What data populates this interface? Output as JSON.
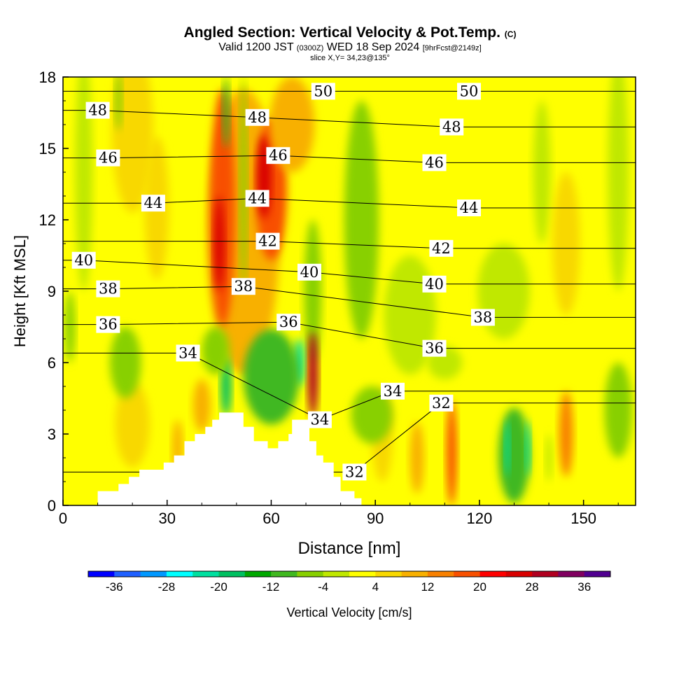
{
  "title": {
    "main": "Angled Section: Vertical Velocity & Pot.Temp.",
    "main_unit": "(C)",
    "valid_prefix": "Valid 1200 JST",
    "valid_utc": "(0300Z)",
    "valid_date": "WED 18 Sep 2024",
    "valid_fcst": "[9hrFcst@2149z]",
    "slice": "slice X,Y= 34,23@135°"
  },
  "chart_data": {
    "type": "heatmap",
    "xlabel": "Distance [nm]",
    "ylabel": "Height [Kft MSL]",
    "xlim": [
      0,
      165
    ],
    "ylim": [
      0,
      18
    ],
    "x_ticks": [
      0,
      30,
      60,
      90,
      120,
      150
    ],
    "y_ticks": [
      0,
      3,
      6,
      9,
      12,
      15,
      18
    ],
    "colorbar": {
      "label": "Vertical Velocity [cm/s]",
      "ticks": [
        "-36",
        "-28",
        "-20",
        "-12",
        "-4",
        "4",
        "12",
        "20",
        "28",
        "36"
      ],
      "levels": [
        -40,
        -36,
        -32,
        -28,
        -24,
        -20,
        -16,
        -12,
        -8,
        -4,
        0,
        4,
        8,
        12,
        16,
        20,
        24,
        28,
        32,
        36,
        40
      ],
      "colors": [
        "#0000ff",
        "#2060ff",
        "#0098ff",
        "#00ffff",
        "#00e0a0",
        "#00c060",
        "#00a800",
        "#40b820",
        "#88d000",
        "#c0e800",
        "#ffff00",
        "#f8d800",
        "#f8b000",
        "#f88000",
        "#f85000",
        "#ff0000",
        "#d80000",
        "#b00020",
        "#800060",
        "#500090"
      ]
    },
    "contour_field": "Potential temperature (C)",
    "contour_labels": [
      {
        "text": "50",
        "x": 75,
        "y": 17.4
      },
      {
        "text": "50",
        "x": 117,
        "y": 17.4
      },
      {
        "text": "48",
        "x": 10,
        "y": 16.6
      },
      {
        "text": "48",
        "x": 56,
        "y": 16.3
      },
      {
        "text": "48",
        "x": 112,
        "y": 15.9
      },
      {
        "text": "46",
        "x": 13,
        "y": 14.6
      },
      {
        "text": "46",
        "x": 62,
        "y": 14.7
      },
      {
        "text": "46",
        "x": 107,
        "y": 14.4
      },
      {
        "text": "44",
        "x": 26,
        "y": 12.7
      },
      {
        "text": "44",
        "x": 56,
        "y": 12.9
      },
      {
        "text": "44",
        "x": 117,
        "y": 12.5
      },
      {
        "text": "42",
        "x": 59,
        "y": 11.1
      },
      {
        "text": "42",
        "x": 109,
        "y": 10.8
      },
      {
        "text": "40",
        "x": 6,
        "y": 10.3
      },
      {
        "text": "40",
        "x": 71,
        "y": 9.8
      },
      {
        "text": "40",
        "x": 107,
        "y": 9.3
      },
      {
        "text": "38",
        "x": 13,
        "y": 9.1
      },
      {
        "text": "38",
        "x": 52,
        "y": 9.2
      },
      {
        "text": "38",
        "x": 121,
        "y": 7.9
      },
      {
        "text": "36",
        "x": 13,
        "y": 7.6
      },
      {
        "text": "36",
        "x": 65,
        "y": 7.7
      },
      {
        "text": "36",
        "x": 107,
        "y": 6.6
      },
      {
        "text": "34",
        "x": 36,
        "y": 6.4
      },
      {
        "text": "34",
        "x": 95,
        "y": 4.8
      },
      {
        "text": "34",
        "x": 74,
        "y": 3.6
      },
      {
        "text": "32",
        "x": 109,
        "y": 4.3
      },
      {
        "text": "32",
        "x": 84,
        "y": 1.4
      }
    ],
    "terrain_profile": [
      [
        0,
        0
      ],
      [
        10,
        0
      ],
      [
        10,
        0.6
      ],
      [
        16,
        0.6
      ],
      [
        16,
        0.9
      ],
      [
        19,
        0.9
      ],
      [
        19,
        1.2
      ],
      [
        22,
        1.2
      ],
      [
        22,
        1.5
      ],
      [
        29,
        1.5
      ],
      [
        29,
        1.8
      ],
      [
        32,
        1.8
      ],
      [
        32,
        2.1
      ],
      [
        35,
        2.1
      ],
      [
        35,
        2.7
      ],
      [
        38,
        2.7
      ],
      [
        38,
        3.0
      ],
      [
        41,
        3.0
      ],
      [
        41,
        3.3
      ],
      [
        43,
        3.3
      ],
      [
        43,
        3.6
      ],
      [
        45,
        3.6
      ],
      [
        45,
        3.9
      ],
      [
        52,
        3.9
      ],
      [
        52,
        3.3
      ],
      [
        55,
        3.3
      ],
      [
        55,
        2.7
      ],
      [
        59,
        2.7
      ],
      [
        59,
        2.4
      ],
      [
        62,
        2.4
      ],
      [
        62,
        2.7
      ],
      [
        65,
        2.7
      ],
      [
        65,
        3.0
      ],
      [
        66,
        3.0
      ],
      [
        66,
        3.6
      ],
      [
        71,
        3.6
      ],
      [
        71,
        2.7
      ],
      [
        73,
        2.7
      ],
      [
        73,
        2.1
      ],
      [
        75,
        2.1
      ],
      [
        75,
        1.8
      ],
      [
        78,
        1.8
      ],
      [
        78,
        1.2
      ],
      [
        80,
        1.2
      ],
      [
        80,
        0.6
      ],
      [
        84,
        0.6
      ],
      [
        84,
        0.3
      ],
      [
        86,
        0.3
      ],
      [
        86,
        0
      ]
    ],
    "velocity_features": [
      {
        "x": 52,
        "y": 11.5,
        "w": 21,
        "h": 12,
        "value": 10
      },
      {
        "x": 46,
        "y": 12.5,
        "w": 7,
        "h": 10,
        "value": 18
      },
      {
        "x": 45,
        "y": 11,
        "w": 3,
        "h": 4,
        "value": 24
      },
      {
        "x": 60,
        "y": 13.3,
        "w": 9,
        "h": 6,
        "value": 18
      },
      {
        "x": 58,
        "y": 13.8,
        "w": 4,
        "h": 3.5,
        "value": 26
      },
      {
        "x": 66,
        "y": 16,
        "w": 13,
        "h": 4,
        "value": 10
      },
      {
        "x": 47,
        "y": 16.5,
        "w": 2,
        "h": 3,
        "value": -10
      },
      {
        "x": 52,
        "y": 13.5,
        "w": 2,
        "h": 9,
        "value": -6
      },
      {
        "x": 72,
        "y": 9,
        "w": 5,
        "h": 6,
        "value": -6
      },
      {
        "x": 72,
        "y": 5.5,
        "w": 3,
        "h": 3.6,
        "value": 30
      },
      {
        "x": 68,
        "y": 6,
        "w": 3,
        "h": 2,
        "value": -22
      },
      {
        "x": 60,
        "y": 5.4,
        "w": 16,
        "h": 4,
        "value": -12
      },
      {
        "x": 47,
        "y": 5,
        "w": 3,
        "h": 2.5,
        "value": -20
      },
      {
        "x": 44,
        "y": 6.5,
        "w": 8,
        "h": 2,
        "value": -8
      },
      {
        "x": 40,
        "y": 4.2,
        "w": 5,
        "h": 2.2,
        "value": 8
      },
      {
        "x": 20,
        "y": 3.4,
        "w": 10,
        "h": 3.6,
        "value": 6
      },
      {
        "x": 33,
        "y": 2.4,
        "w": 3,
        "h": 2.4,
        "value": 10
      },
      {
        "x": 20,
        "y": 15.8,
        "w": 12,
        "h": 7,
        "value": 7
      },
      {
        "x": 27,
        "y": 12.5,
        "w": 7,
        "h": 6,
        "value": 7
      },
      {
        "x": 6,
        "y": 14,
        "w": 5,
        "h": 10,
        "value": -4
      },
      {
        "x": 16,
        "y": 17,
        "w": 2,
        "h": 2.5,
        "value": -6
      },
      {
        "x": 2,
        "y": 7.5,
        "w": 3,
        "h": 3,
        "value": -8
      },
      {
        "x": 18,
        "y": 6,
        "w": 9,
        "h": 3,
        "value": -5
      },
      {
        "x": 160,
        "y": 14,
        "w": 6,
        "h": 10,
        "value": -4
      },
      {
        "x": 138,
        "y": 14,
        "w": 5,
        "h": 6,
        "value": -4
      },
      {
        "x": 86,
        "y": 12,
        "w": 10,
        "h": 10,
        "value": -5
      },
      {
        "x": 100,
        "y": 8,
        "w": 15,
        "h": 5,
        "value": -4
      },
      {
        "x": 127,
        "y": 9,
        "w": 15,
        "h": 4,
        "value": -4
      },
      {
        "x": 145,
        "y": 11,
        "w": 8,
        "h": 6,
        "value": 6
      },
      {
        "x": 92,
        "y": 3,
        "w": 6,
        "h": 4,
        "value": 7
      },
      {
        "x": 102,
        "y": 2,
        "w": 4,
        "h": 3,
        "value": 10
      },
      {
        "x": 112,
        "y": 2.2,
        "w": 3,
        "h": 4.4,
        "value": 18
      },
      {
        "x": 130,
        "y": 2.1,
        "w": 9,
        "h": 4,
        "value": -11
      },
      {
        "x": 128,
        "y": 2.4,
        "w": 1.5,
        "h": 2.4,
        "value": -22
      },
      {
        "x": 134,
        "y": 2.4,
        "w": 1.5,
        "h": 2.4,
        "value": -22
      },
      {
        "x": 145,
        "y": 3,
        "w": 4,
        "h": 3.6,
        "value": 14
      },
      {
        "x": 140,
        "y": 2,
        "w": 2,
        "h": 2,
        "value": -4
      },
      {
        "x": 160,
        "y": 4,
        "w": 8,
        "h": 4,
        "value": -5
      },
      {
        "x": 89,
        "y": 3.8,
        "w": 12,
        "h": 2.4,
        "value": -6
      },
      {
        "x": 110,
        "y": 6,
        "w": 10,
        "h": 1.4,
        "value": -4
      }
    ]
  }
}
